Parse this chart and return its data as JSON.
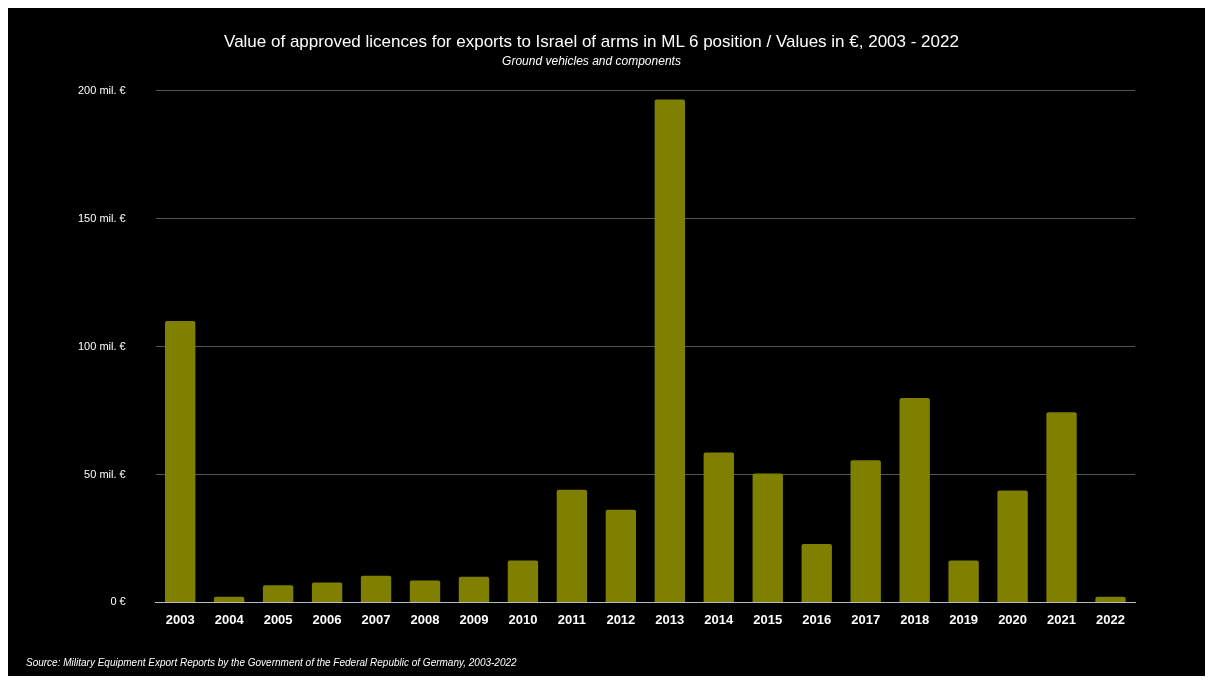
{
  "chart_data": {
    "type": "bar",
    "title": "Value of approved licences for exports to Israel of arms in ML 6 position / Values in €, 2003 - 2022",
    "subtitle": "Ground vehicles and components",
    "categories": [
      "2003",
      "2004",
      "2005",
      "2006",
      "2007",
      "2008",
      "2009",
      "2010",
      "2011",
      "2012",
      "2013",
      "2014",
      "2015",
      "2016",
      "2017",
      "2018",
      "2019",
      "2020",
      "2021",
      "2022"
    ],
    "values": [
      110,
      2.2,
      6.7,
      7.8,
      10.4,
      8.6,
      10,
      16.4,
      44,
      36.2,
      196.6,
      58.6,
      50.4,
      22.8,
      55.6,
      79.9,
      16.4,
      43.7,
      74.3,
      2.2
    ],
    "color": "#808000",
    "ylim": [
      0,
      200
    ],
    "yticks": [
      {
        "value": 0,
        "label": "0 €"
      },
      {
        "value": 50,
        "label": "50 mil. €"
      },
      {
        "value": 100,
        "label": "100 mil. €"
      },
      {
        "value": 150,
        "label": "150 mil. €"
      },
      {
        "value": 200,
        "label": "200 mil. €"
      }
    ],
    "grid": "y",
    "legend": false,
    "annotations": [
      "Source: Military Equipment Export Reports by the Government of the Federal Republic of Germany, 2003-2022"
    ]
  }
}
